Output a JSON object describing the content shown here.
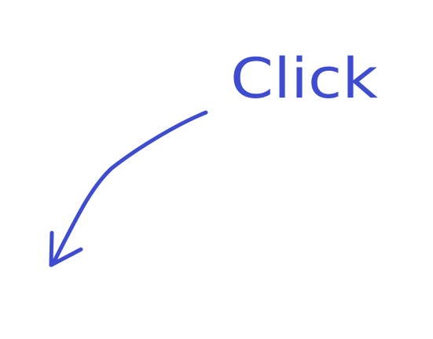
{
  "label": "Click"
}
